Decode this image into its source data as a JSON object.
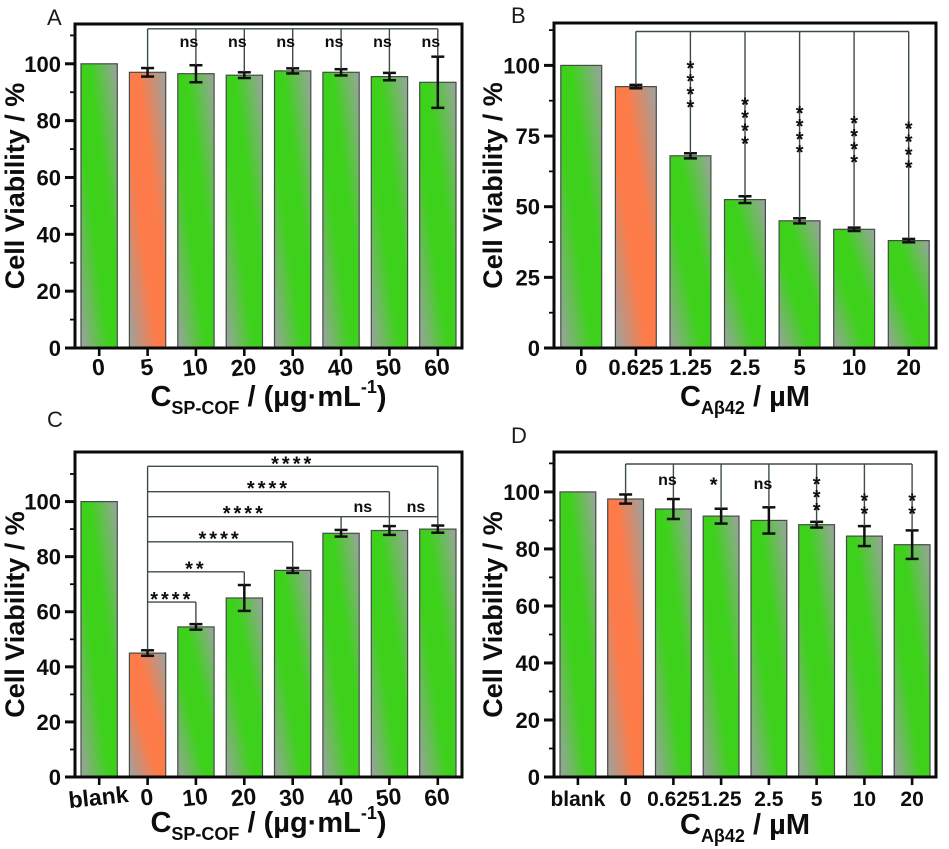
{
  "figure": {
    "background": "#ffffff",
    "description_visible_text_only": true
  },
  "colors": {
    "green": "#3ed11c",
    "orange": "#fd7b49",
    "bar_gray": "#9ba3a0",
    "bar_border": "#454d47",
    "axis": "#0a0a0a",
    "bracket": "#3d4b4b",
    "error": "#101010",
    "text": "#0d0d0d",
    "ns_red": "#e8430c"
  },
  "chart_data": [
    {
      "id": "A",
      "letter": "A",
      "type": "bar",
      "ylabel": "Cell Viability / %",
      "xlabel_parts": {
        "prefix": "C",
        "sub": "SP-COF",
        "mid": " / (µg·mL",
        "sup": "-1",
        "suffix": ")"
      },
      "ylim": [
        0,
        114
      ],
      "yticks": [
        0,
        20,
        40,
        60,
        80,
        100
      ],
      "categories": [
        "0",
        "5",
        "10",
        "20",
        "30",
        "40",
        "50",
        "60"
      ],
      "values": [
        100,
        97,
        96.5,
        96,
        97.5,
        97,
        95.5,
        93.5
      ],
      "errors": [
        0,
        1.5,
        3,
        1,
        0.9,
        1.1,
        1.3,
        9
      ],
      "bar_colors": [
        "green",
        "orange",
        "green",
        "green",
        "green",
        "green",
        "green",
        "green"
      ],
      "significance": {
        "segments": [
          [
            1,
            98.7,
            1,
            112.3
          ],
          [
            1,
            112.3,
            7,
            112.3
          ],
          [
            2,
            112.3,
            2,
            99.6
          ],
          [
            3,
            112.3,
            3,
            97.1
          ],
          [
            4,
            112.3,
            4,
            98.5
          ],
          [
            5,
            112.3,
            5,
            98.2
          ],
          [
            6,
            112.3,
            6,
            96.9
          ],
          [
            7,
            112.3,
            7,
            102.6
          ]
        ],
        "labels": [
          {
            "x": 2,
            "y": 107.8,
            "t": "ns",
            "dx": -7
          },
          {
            "x": 3,
            "y": 107.8,
            "t": "ns",
            "dx": -7
          },
          {
            "x": 4,
            "y": 107.8,
            "t": "ns",
            "dx": -7
          },
          {
            "x": 5,
            "y": 107.8,
            "t": "ns",
            "dx": -7
          },
          {
            "x": 6,
            "y": 107.8,
            "t": "ns",
            "dx": -7
          },
          {
            "x": 7,
            "y": 107.8,
            "t": "ns",
            "dx": -7
          }
        ]
      }
    },
    {
      "id": "B",
      "letter": "B",
      "type": "bar",
      "ylabel": "Cell Viability / %",
      "xlabel_parts": {
        "prefix": "C",
        "sub": "Aβ42",
        "mid": " / µM",
        "sup": "",
        "suffix": ""
      },
      "ylim": [
        0,
        115
      ],
      "yticks": [
        0,
        25,
        50,
        75,
        100
      ],
      "categories": [
        "0",
        "0.625",
        "1.25",
        "2.5",
        "5",
        "10",
        "20"
      ],
      "values": [
        100,
        92.5,
        68,
        52.5,
        45,
        42,
        38
      ],
      "errors": [
        0,
        0.6,
        0.9,
        1.2,
        0.9,
        0.6,
        0.6
      ],
      "bar_colors": [
        "green",
        "orange",
        "green",
        "green",
        "green",
        "green",
        "green"
      ],
      "significance": {
        "segments": [
          [
            1,
            93.2,
            1,
            112
          ],
          [
            1,
            112,
            6,
            112
          ],
          [
            2,
            112,
            2,
            69
          ],
          [
            3,
            112,
            3,
            53.8
          ],
          [
            4,
            112,
            4,
            46
          ],
          [
            5,
            112,
            5,
            42.7
          ],
          [
            6,
            112,
            6,
            38.7
          ]
        ],
        "labels": [
          {
            "x": 2,
            "y": 94,
            "t": "****",
            "rot": 1
          },
          {
            "x": 3,
            "y": 81,
            "t": "****",
            "rot": 1
          },
          {
            "x": 4,
            "y": 78,
            "t": "****",
            "rot": 1
          },
          {
            "x": 5,
            "y": 74.5,
            "t": "****",
            "rot": 1
          },
          {
            "x": 6,
            "y": 72.5,
            "t": "****",
            "rot": 1
          }
        ]
      }
    },
    {
      "id": "C",
      "letter": "C",
      "type": "bar",
      "ylabel": "Cell Viability / %",
      "xlabel_parts": {
        "prefix": "C",
        "sub": "SP-COF",
        "mid": " / (µg·mL",
        "sup": "-1",
        "suffix": ")"
      },
      "ylim": [
        0,
        118
      ],
      "yticks": [
        0,
        20,
        40,
        60,
        80,
        100
      ],
      "categories": [
        "blank",
        "0",
        "10",
        "20",
        "30",
        "40",
        "50",
        "60"
      ],
      "values": [
        100,
        45,
        54.5,
        65,
        75,
        88.5,
        89.5,
        90
      ],
      "errors": [
        0,
        1,
        1,
        4.7,
        0.9,
        1.2,
        1.6,
        1.3
      ],
      "bar_colors": [
        "green",
        "orange",
        "green",
        "green",
        "green",
        "green",
        "green",
        "green"
      ],
      "significance": {
        "segments": [
          [
            1,
            46.2,
            1,
            112.8
          ],
          [
            1,
            63.5,
            2,
            63.5
          ],
          [
            2,
            63.5,
            2,
            55.7
          ],
          [
            1,
            74.5,
            3,
            74.5
          ],
          [
            3,
            74.5,
            3,
            69.9
          ],
          [
            1,
            85.4,
            4,
            85.4
          ],
          [
            4,
            85.4,
            4,
            76.1
          ],
          [
            1,
            94.5,
            5,
            94.5
          ],
          [
            5,
            94.5,
            5,
            89.9
          ],
          [
            1,
            103.6,
            6,
            103.6
          ],
          [
            6,
            103.6,
            6,
            91.3
          ],
          [
            1,
            112.8,
            7,
            112.8
          ],
          [
            7,
            112.8,
            7,
            91.5
          ],
          [
            5,
            94.5,
            7,
            94.5
          ]
        ],
        "labels": [
          {
            "x": 1.5,
            "y": 66.5,
            "t": "****"
          },
          {
            "x": 2,
            "y": 77.5,
            "t": "**"
          },
          {
            "x": 2.5,
            "y": 88.5,
            "t": "****"
          },
          {
            "x": 3,
            "y": 97.6,
            "t": "****"
          },
          {
            "x": 3.5,
            "y": 106.7,
            "t": "****"
          },
          {
            "x": 4,
            "y": 115.6,
            "t": "****"
          },
          {
            "x": 5.45,
            "y": 98.2,
            "t": "ns",
            "c": "red"
          },
          {
            "x": 6.55,
            "y": 98.2,
            "t": "ns",
            "c": "red"
          }
        ]
      }
    },
    {
      "id": "D",
      "letter": "D",
      "type": "bar",
      "ylabel": "Cell Viability / %",
      "xlabel_parts": {
        "prefix": "C",
        "sub": "Aβ42",
        "mid": " / µM",
        "sup": "",
        "suffix": ""
      },
      "ylim": [
        0,
        114
      ],
      "yticks": [
        0,
        20,
        40,
        60,
        80,
        100
      ],
      "categories": [
        "blank",
        "0",
        "0.625",
        "1.25",
        "2.5",
        "5",
        "10",
        "20"
      ],
      "values": [
        100,
        97.5,
        94,
        91.5,
        90,
        88.5,
        84.5,
        81.5
      ],
      "errors": [
        0,
        1.6,
        3.5,
        2.6,
        4.6,
        1,
        3.5,
        5
      ],
      "bar_colors": [
        "green",
        "orange",
        "green",
        "green",
        "green",
        "green",
        "green",
        "green"
      ],
      "significance": {
        "segments": [
          [
            1,
            99.3,
            1,
            109.8
          ],
          [
            1,
            109.8,
            7,
            109.8
          ],
          [
            2,
            109.8,
            2,
            97.7
          ],
          [
            3,
            109.8,
            3,
            94.2
          ],
          [
            4,
            109.8,
            4,
            94.7
          ],
          [
            5,
            109.8,
            5,
            89.6
          ],
          [
            6,
            109.8,
            6,
            88.1
          ],
          [
            7,
            109.8,
            7,
            86.6
          ]
        ],
        "labels": [
          {
            "x": 2,
            "y": 104.3,
            "t": "ns",
            "dx": -6
          },
          {
            "x": 3,
            "y": 104.3,
            "t": "*",
            "dx": -6
          },
          {
            "x": 4,
            "y": 103,
            "t": "ns",
            "dx": -6
          },
          {
            "x": 5,
            "y": 100,
            "t": "***",
            "rot": 1
          },
          {
            "x": 6,
            "y": 96.5,
            "t": "**",
            "rot": 1
          },
          {
            "x": 7,
            "y": 96.5,
            "t": "**",
            "rot": 1
          }
        ]
      }
    }
  ]
}
